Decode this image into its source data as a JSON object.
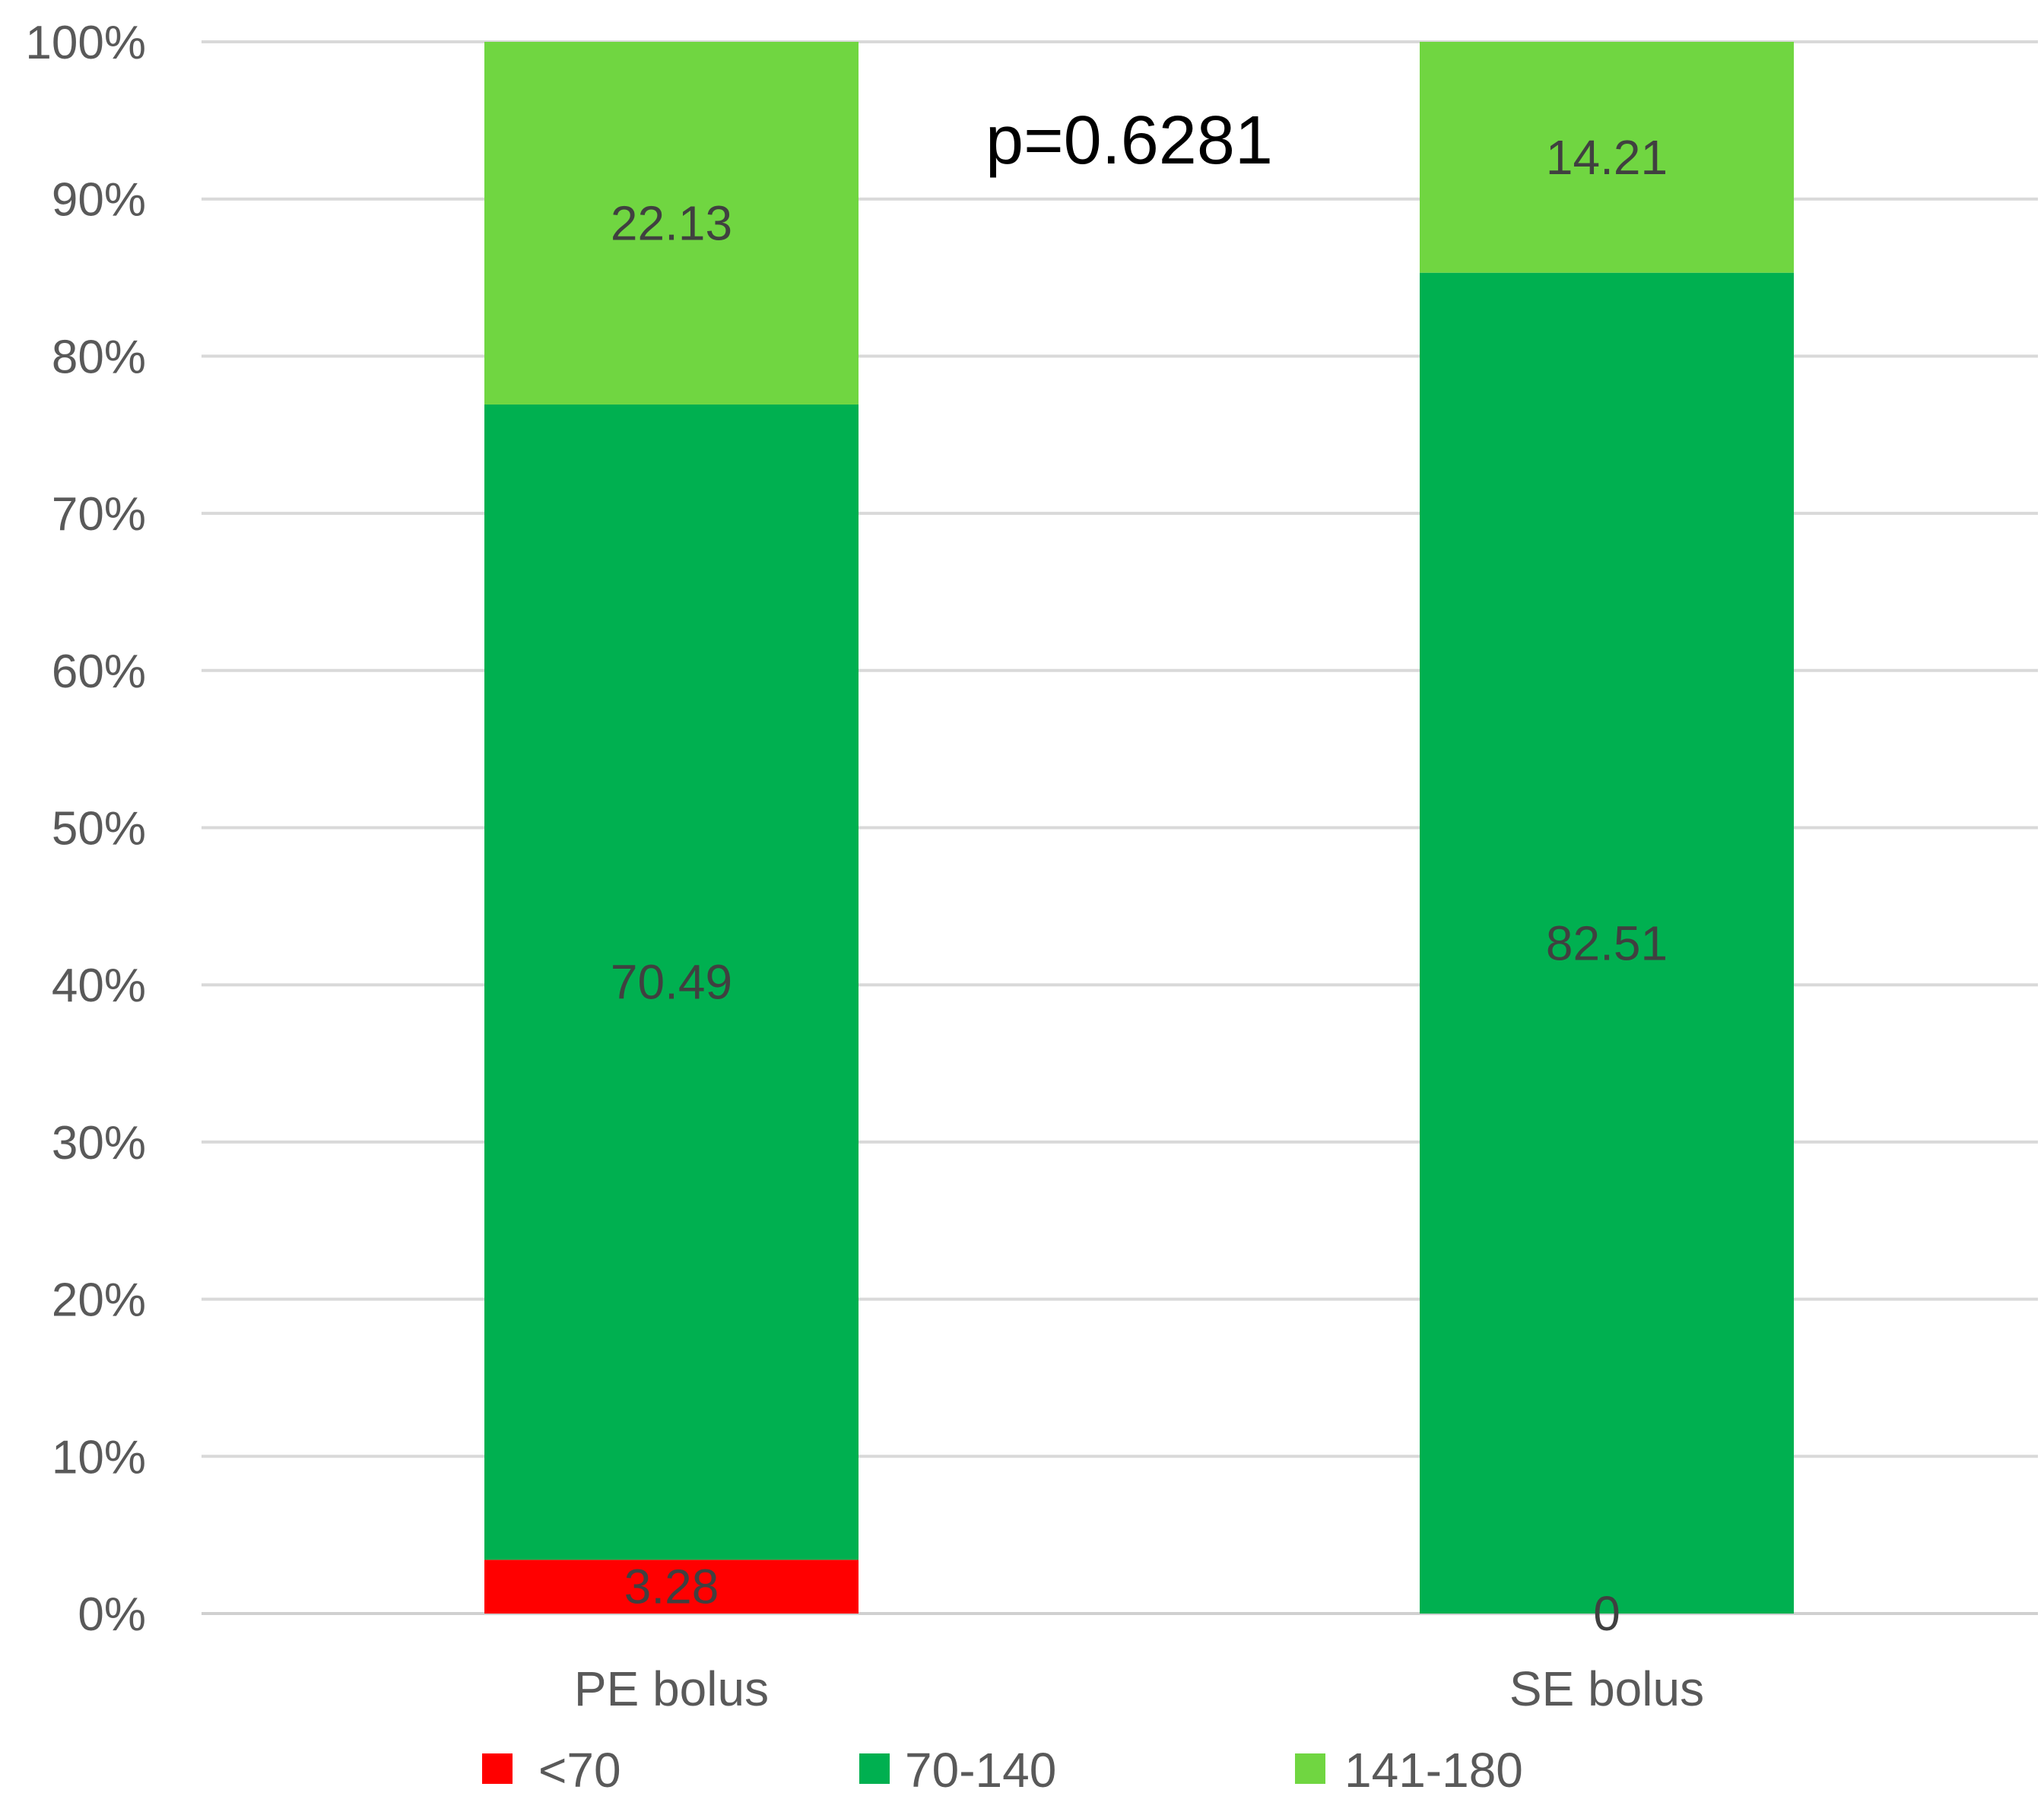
{
  "chart_data": {
    "type": "bar",
    "stacked": true,
    "percent_stacked": true,
    "title": "",
    "xlabel": "",
    "ylabel": "",
    "categories": [
      "PE bolus",
      "SE bolus"
    ],
    "series": [
      {
        "name": "<70",
        "values": [
          3.28,
          0
        ],
        "labels": [
          "3.28",
          "0"
        ],
        "color": "#ff0000"
      },
      {
        "name": "70-140",
        "values": [
          70.49,
          82.51
        ],
        "labels": [
          "70.49",
          "82.51"
        ],
        "color": "#00b050"
      },
      {
        "name": "141-180",
        "values": [
          22.13,
          14.21
        ],
        "labels": [
          "22.13",
          "14.21"
        ],
        "color": "#70d641"
      }
    ],
    "yticks": [
      "0%",
      "10%",
      "20%",
      "30%",
      "40%",
      "50%",
      "60%",
      "70%",
      "80%",
      "90%",
      "100%"
    ],
    "ylim": [
      0,
      100
    ],
    "grid": true,
    "legend_position": "bottom",
    "annotation": "p=0.6281"
  }
}
